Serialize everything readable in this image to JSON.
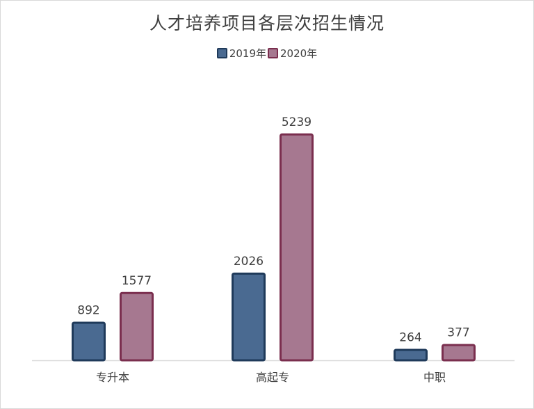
{
  "chart_data": {
    "type": "bar",
    "title": "人才培养项目各层次招生情况",
    "categories": [
      "专升本",
      "高起专",
      "中职"
    ],
    "series": [
      {
        "name": "2019年",
        "values": [
          892,
          2026,
          264
        ],
        "color": "#4a6a91",
        "border": "#1f3a5a"
      },
      {
        "name": "2020年",
        "values": [
          1577,
          5239,
          377
        ],
        "color": "#a67890",
        "border": "#7a2e4e"
      }
    ],
    "ylim": [
      0,
      5300
    ],
    "grid": false,
    "legend_position": "top-center"
  }
}
